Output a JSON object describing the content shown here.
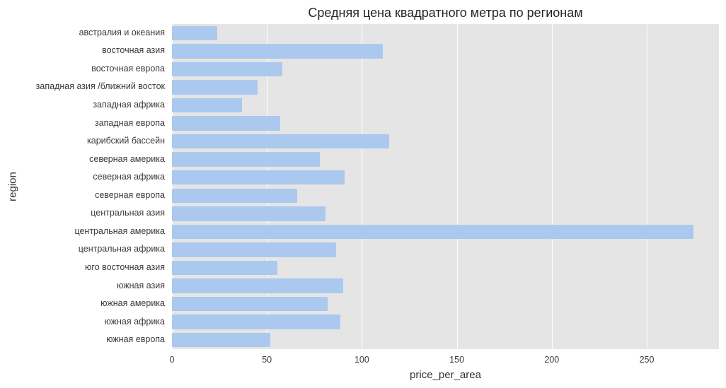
{
  "chart_data": {
    "type": "bar",
    "orientation": "horizontal",
    "title": "Средняя цена квадратного метра по регионам",
    "xlabel": "price_per_area",
    "ylabel": "region",
    "xlim": [
      0,
      288
    ],
    "xticks": [
      0,
      50,
      100,
      150,
      200,
      250
    ],
    "grid": true,
    "legend": null,
    "bar_color": "#abc9ee",
    "background_color": "#e5e5e5",
    "categories": [
      "австралия и океания",
      "восточная азия",
      "восточная европа",
      "западная азия /ближний восток",
      "западная африка",
      "западная европа",
      "карибский бассейн",
      "северная америка",
      "северная африка",
      "северная европа",
      "центральная азия",
      "центральная америка",
      "центральная африка",
      "юго восточная азия",
      "южная азия",
      "южная америка",
      "южная африка",
      "южная европа"
    ],
    "values": [
      24,
      111,
      58,
      45,
      37,
      57,
      114.5,
      78,
      91,
      66,
      81,
      274.5,
      86.5,
      55.5,
      90,
      82,
      88.7,
      51.8
    ]
  }
}
